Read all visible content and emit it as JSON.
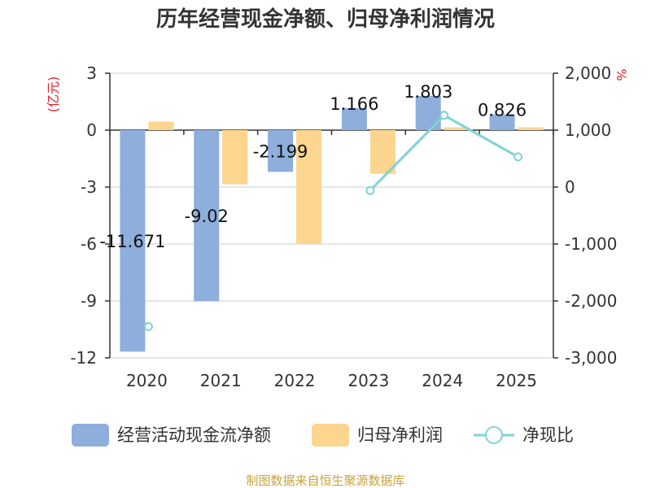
{
  "chart_data": {
    "type": "bar+line",
    "title": "历年经营现金净额、归母净利润情况",
    "categories": [
      "2020",
      "2021",
      "2022",
      "2023",
      "2024",
      "2025"
    ],
    "y_left": {
      "unit": "(亿元)",
      "ylim": [
        -12,
        3
      ],
      "ticks": [
        3,
        0,
        -3,
        -6,
        -9,
        -12
      ]
    },
    "y_right": {
      "unit": "%",
      "ylim": [
        -3000,
        2000
      ],
      "ticks": [
        2000,
        1000,
        0,
        -1000,
        -2000,
        -3000
      ]
    },
    "series": [
      {
        "name": "经营活动现金流净额",
        "type": "bar",
        "axis": "left",
        "color": "#8eaedb",
        "values": [
          -11.671,
          -9.02,
          -2.199,
          1.166,
          1.803,
          0.826
        ],
        "labels": [
          "-11.671",
          "-9.02",
          "-2.199",
          "1.166",
          "1.803",
          "0.826"
        ]
      },
      {
        "name": "归母净利润",
        "type": "bar",
        "axis": "left",
        "color": "#fcd58e",
        "values": [
          0.45,
          -2.85,
          -6.0,
          -2.3,
          0.15,
          0.15
        ]
      },
      {
        "name": "净现比",
        "type": "line",
        "axis": "right",
        "color": "#7fd3d6",
        "values": [
          -2450,
          null,
          null,
          -60,
          1260,
          530
        ],
        "isolated_points": [
          0
        ]
      }
    ]
  },
  "footer": {
    "source": "制图数据来自恒生聚源数据库"
  }
}
